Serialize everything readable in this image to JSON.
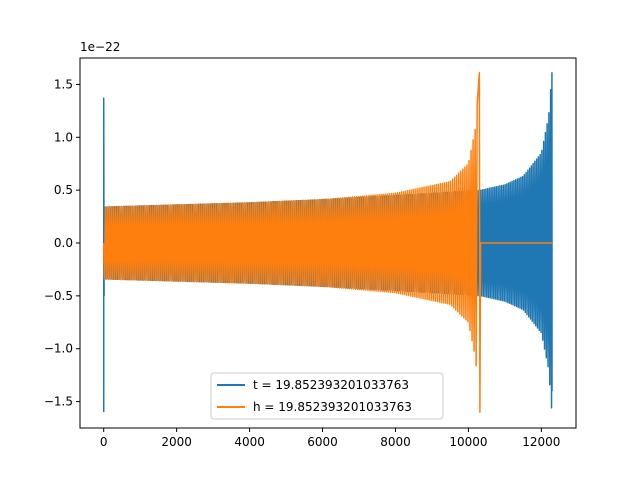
{
  "chart_data": {
    "type": "line",
    "title": "",
    "xlabel": "",
    "ylabel": "",
    "offset_text": "1e−22",
    "xlim": [
      -650,
      12950
    ],
    "ylim": [
      -1.75,
      1.75
    ],
    "xticks": [
      0,
      2000,
      4000,
      6000,
      8000,
      10000,
      12000
    ],
    "xtick_labels": [
      "0",
      "2000",
      "4000",
      "6000",
      "8000",
      "10000",
      "12000"
    ],
    "yticks": [
      -1.5,
      -1.0,
      -0.5,
      0.0,
      0.5,
      1.0,
      1.5
    ],
    "ytick_labels": [
      "−1.5",
      "−1.0",
      "−0.5",
      "0.0",
      "0.5",
      "1.0",
      "1.5"
    ],
    "grid": false,
    "legend_placement": "lower-center",
    "series": [
      {
        "name": "t = 19.852393201033763",
        "color": "#1f77b4",
        "description": "oscillating chirp waveform",
        "x_start": 0,
        "x_end": 12290,
        "initial_spike": {
          "x": 0,
          "max": 1.37,
          "min": -1.6
        },
        "envelope_x": [
          0,
          2000,
          4000,
          6000,
          8000,
          10000,
          10350,
          11000,
          11500,
          12000,
          12200,
          12290
        ],
        "envelope_y": [
          0.34,
          0.36,
          0.38,
          0.41,
          0.45,
          0.49,
          0.5,
          0.55,
          0.63,
          0.85,
          1.2,
          1.61
        ],
        "final_min": -1.4
      },
      {
        "name": "h = 19.852393201033763",
        "color": "#ff7f0e",
        "description": "oscillating chirp waveform, zero after merger",
        "x_start": 0,
        "x_end": 12290,
        "envelope_x": [
          0,
          2000,
          4000,
          6000,
          8000,
          9500,
          10000,
          10200,
          10300
        ],
        "envelope_y": [
          0.34,
          0.36,
          0.38,
          0.41,
          0.47,
          0.58,
          0.75,
          1.1,
          1.61
        ],
        "peak_x": 10300,
        "final_min": -1.6,
        "after_peak_value": 0.0
      }
    ]
  }
}
